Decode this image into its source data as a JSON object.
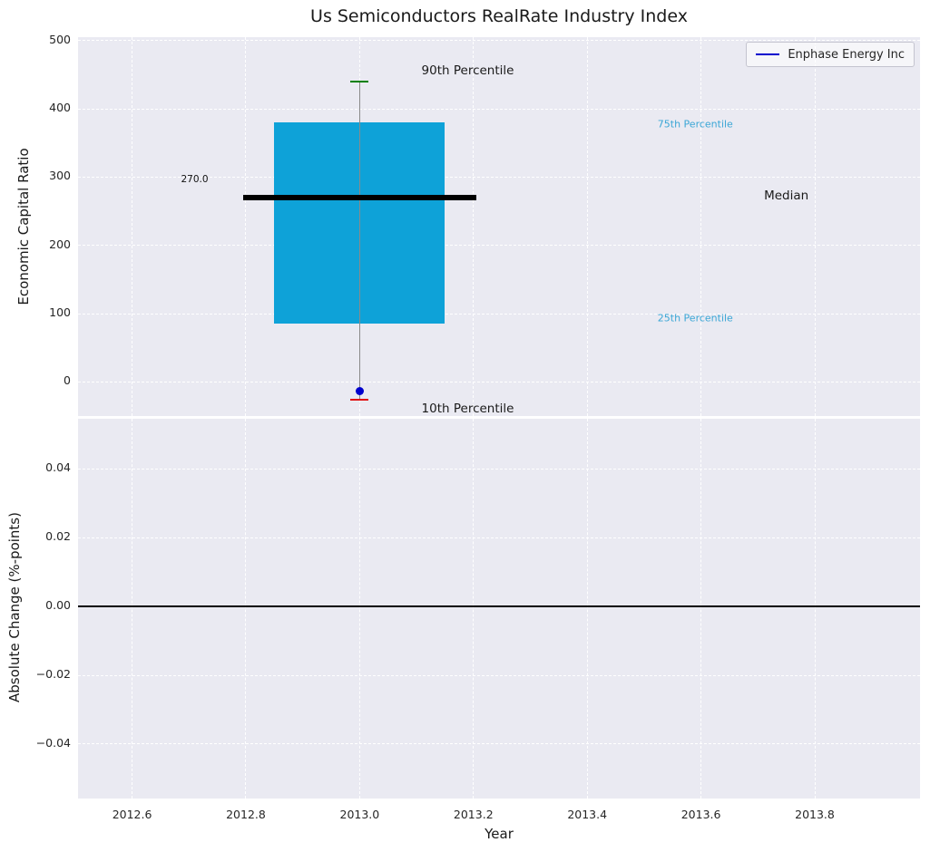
{
  "legend": {
    "label": "Enphase Energy Inc"
  },
  "colors": {
    "figure_bg": "#ffffff",
    "axes_bg": "#eaeaf2",
    "grid": "#ffffff",
    "tick_text": "#262626",
    "box_fill": "#0ea2d8",
    "median": "#000000",
    "whisker": "#8a8a8a",
    "cap_90": "#008000",
    "cap_10": "#e01010",
    "point": "#0000cd",
    "legend_line": "#0000cd",
    "zero_line": "#000000"
  },
  "chart_data": [
    {
      "type": "boxplot",
      "title": "Us Semiconductors RealRate Industry Index",
      "ylabel": "Economic Capital Ratio",
      "ylim": [
        -50,
        505
      ],
      "yticks": [
        0,
        100,
        200,
        300,
        400,
        500
      ],
      "ytick_decimals": 0,
      "xlim": [
        2012.505,
        2013.985
      ],
      "xticks": [
        2012.6,
        2012.8,
        2013.0,
        2013.2,
        2013.4,
        2013.6,
        2013.8
      ],
      "xtick_decimals": 1,
      "grid": true,
      "legend_position": "upper right",
      "series_x": 2013.0,
      "box_width": 0.3,
      "median_line_width": 0.41,
      "box": {
        "p90": 440,
        "q3": 380,
        "median": 270,
        "q1": 85,
        "p10": -26,
        "company_point": -13
      },
      "annotations": [
        {
          "name": "90th-percentile",
          "text": "90th Percentile",
          "x": 2013.19,
          "y": 456,
          "color": "#1a1a1a",
          "size": 13.5
        },
        {
          "name": "75th-percentile",
          "text": "75th Percentile",
          "x": 2013.59,
          "y": 378,
          "color": "#3aa6d6",
          "size": 11
        },
        {
          "name": "median",
          "text": "Median",
          "x": 2013.75,
          "y": 273,
          "color": "#1a1a1a",
          "size": 13.5
        },
        {
          "name": "25th-percentile",
          "text": "25th Percentile",
          "x": 2013.59,
          "y": 94,
          "color": "#3aa6d6",
          "size": 11
        },
        {
          "name": "10th-percentile",
          "text": "10th Percentile",
          "x": 2013.19,
          "y": -39,
          "color": "#1a1a1a",
          "size": 13.5
        },
        {
          "name": "median-value",
          "text": "270.0",
          "x": 2012.71,
          "y": 296,
          "color": "#111111",
          "size": 10.5
        }
      ]
    },
    {
      "type": "line",
      "ylabel": "Absolute Change (%-points)",
      "xlabel": "Year",
      "ylim": [
        -0.0558,
        0.0545
      ],
      "yticks": [
        -0.04,
        -0.02,
        0,
        0.02,
        0.04
      ],
      "ytick_decimals": 2,
      "xlim": [
        2012.505,
        2013.985
      ],
      "xticks": [
        2012.6,
        2012.8,
        2013.0,
        2013.2,
        2013.4,
        2013.6,
        2013.8
      ],
      "xtick_decimals": 1,
      "grid": true,
      "zero_line_y": 0
    }
  ]
}
